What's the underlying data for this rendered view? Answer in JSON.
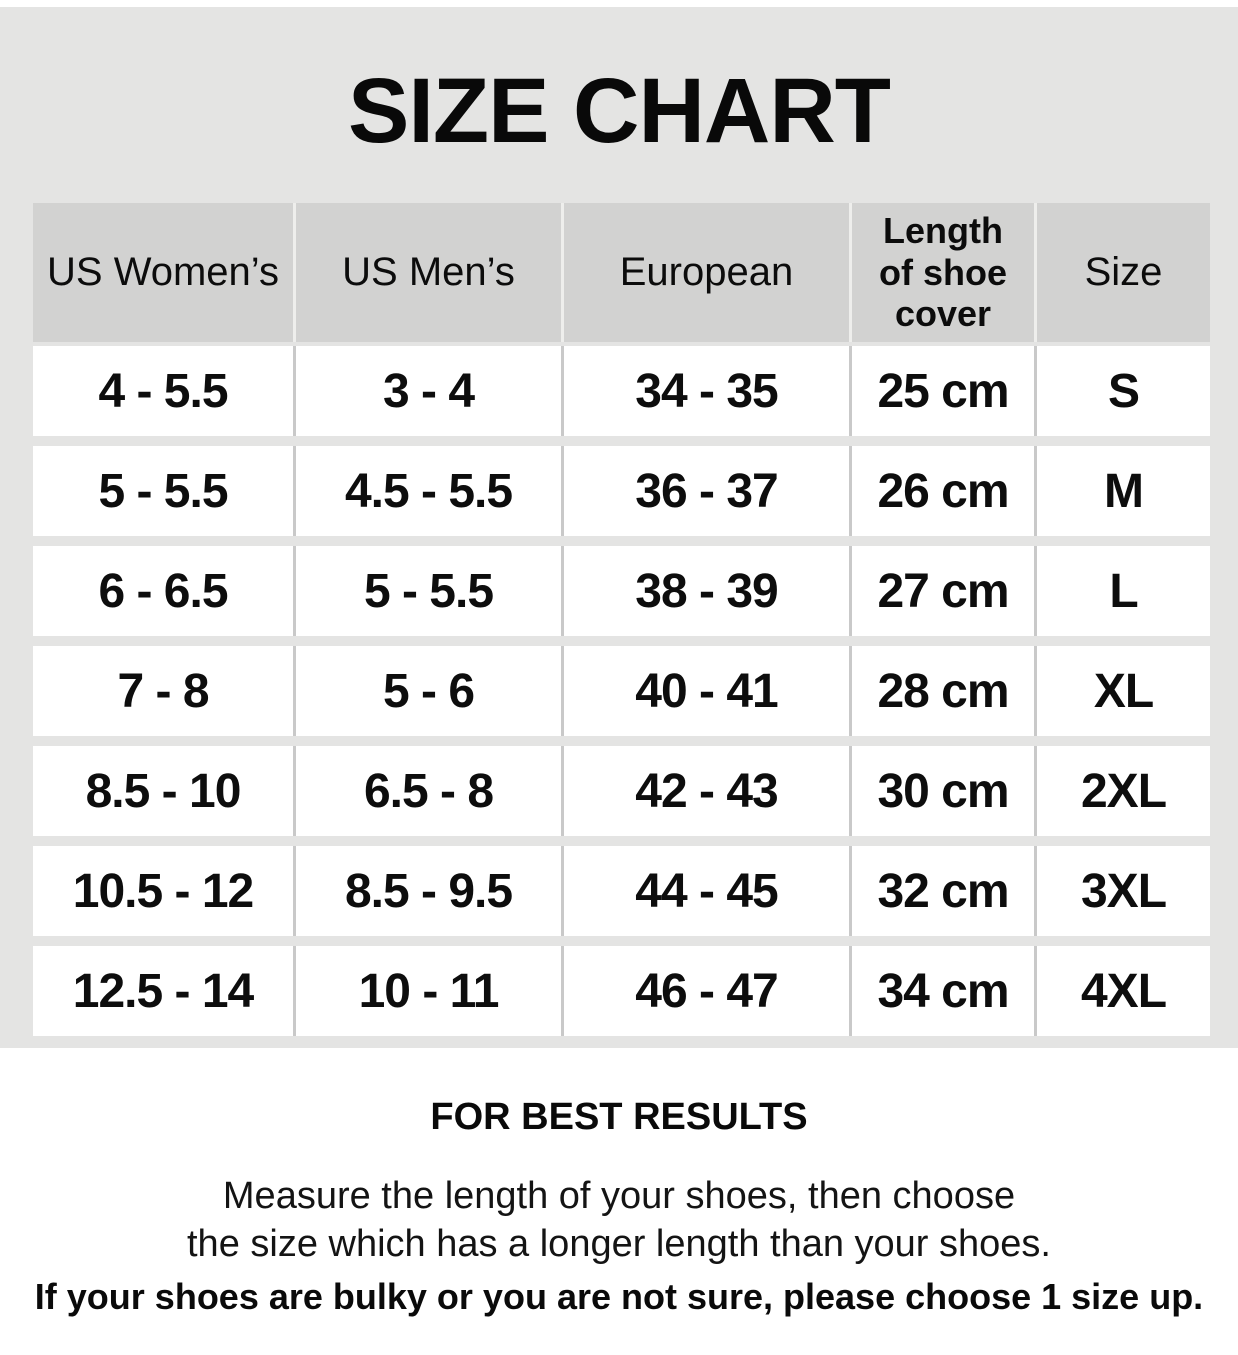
{
  "title": "SIZE CHART",
  "table": {
    "headers": [
      "US Women’s",
      "US Men’s",
      "European",
      "Length of shoe cover",
      "Size"
    ],
    "rows": [
      [
        "4 - 5.5",
        "3 - 4",
        "34 - 35",
        "25 cm",
        "S"
      ],
      [
        "5 - 5.5",
        "4.5 - 5.5",
        "36 - 37",
        "26 cm",
        "M"
      ],
      [
        "6 - 6.5",
        "5 - 5.5",
        "38 - 39",
        "27 cm",
        "L"
      ],
      [
        "7 - 8",
        "5 - 6",
        "40 - 41",
        "28 cm",
        "XL"
      ],
      [
        "8.5 - 10",
        "6.5 - 8",
        "42 - 43",
        "30 cm",
        "2XL"
      ],
      [
        "10.5 - 12",
        "8.5 - 9.5",
        "44 - 45",
        "32 cm",
        "3XL"
      ],
      [
        "12.5 - 14",
        "10 - 11",
        "46 - 47",
        "34 cm",
        "4XL"
      ]
    ]
  },
  "footer": {
    "heading": "FOR BEST RESULTS",
    "line1": "Measure the length of your shoes, then choose",
    "line2": "the size which has a longer length than your shoes.",
    "line3": "If your shoes are bulky or you are not sure, please choose 1 size up."
  },
  "colors": {
    "panel_background": "#e4e4e3",
    "header_cell_background": "#d2d2d1",
    "data_cell_background": "#ffffff",
    "cell_divider": "#c9c9c9",
    "text": "#0d0d0d",
    "footer_background": "#ffffff"
  }
}
